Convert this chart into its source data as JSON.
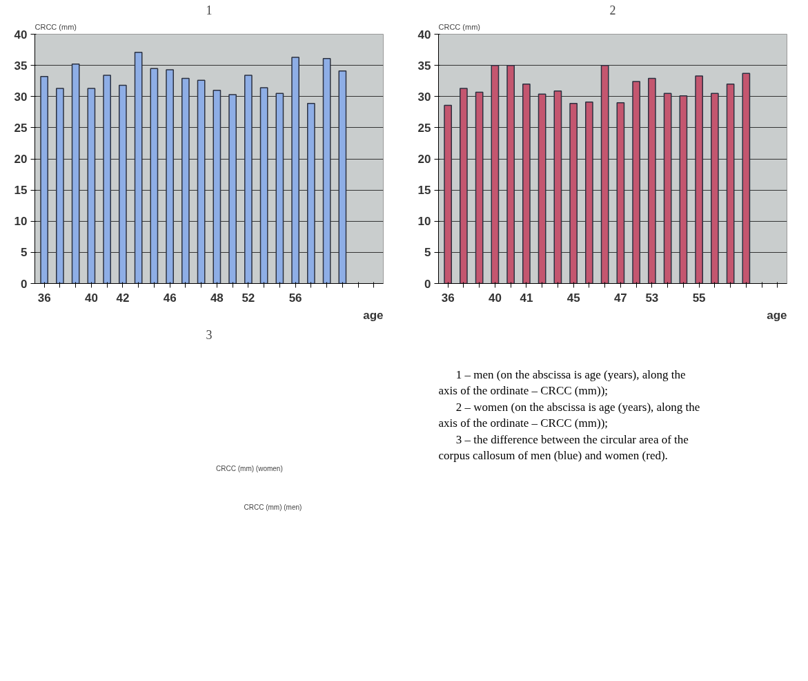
{
  "chart_data": [
    {
      "type": "bar",
      "title": "1",
      "ylabel": "CRCC (mm)",
      "xlabel": "age",
      "categories": [
        "36",
        null,
        null,
        "40",
        null,
        "42",
        null,
        null,
        "46",
        null,
        null,
        "48",
        null,
        "52",
        null,
        null,
        "56",
        null,
        null,
        null,
        null,
        null
      ],
      "values": [
        33.2,
        31.3,
        35.2,
        31.3,
        33.4,
        31.8,
        37.1,
        34.5,
        34.3,
        32.9,
        32.6,
        31.0,
        30.3,
        33.4,
        31.4,
        30.5,
        36.3,
        28.9,
        36.1,
        34.1,
        null,
        null
      ],
      "color": "#8eaee6",
      "ylim": [
        0,
        40
      ],
      "yticks": [
        0,
        5,
        10,
        15,
        20,
        25,
        30,
        35,
        40
      ],
      "grid": "y"
    },
    {
      "type": "bar",
      "title": "2",
      "ylabel": "CRCC (mm)",
      "xlabel": "age",
      "categories": [
        "36",
        null,
        null,
        "40",
        null,
        "41",
        null,
        null,
        "45",
        null,
        null,
        "47",
        null,
        "53",
        null,
        null,
        "55",
        null,
        null,
        null,
        null,
        null
      ],
      "values": [
        28.6,
        31.3,
        30.7,
        35.0,
        35.0,
        32.0,
        30.4,
        30.9,
        28.9,
        29.1,
        35.0,
        29.0,
        32.4,
        32.9,
        30.5,
        30.1,
        33.3,
        30.5,
        32.0,
        33.7,
        null,
        null
      ],
      "color": "#c4566f",
      "ylim": [
        0,
        40
      ],
      "yticks": [
        0,
        5,
        10,
        15,
        20,
        25,
        30,
        35,
        40
      ],
      "grid": "y"
    },
    {
      "type": "other",
      "title": "3",
      "annotations": [
        "CRCC (mm) (women)",
        "CRCC (mm) (men)"
      ]
    },
    {
      "type": "other",
      "annotations": [
        "1 – men (on the abscissa is age (years), along the axis of the ordinate – CRCC (mm));",
        "2 – women (on the abscissa is age (years), along the axis of the ordinate – CRCC (mm));",
        "3 – the difference between the circular area of the corpus callosum of men (blue) and women (red)."
      ]
    }
  ]
}
